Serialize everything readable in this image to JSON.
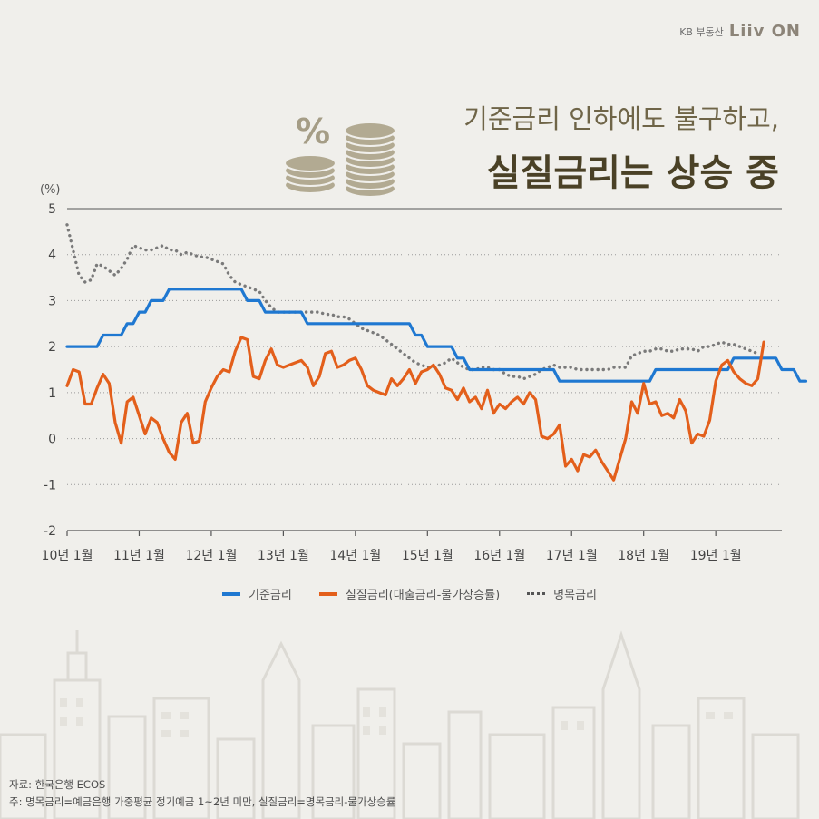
{
  "brand": {
    "kb_text": "KB 부동산",
    "logo_text": "Liiv ON"
  },
  "title": {
    "line1": "기준금리 인하에도 불구하고,",
    "line2": "실질금리는 상승 중"
  },
  "badge": {
    "percent_symbol": "%"
  },
  "colors": {
    "base_rate": "#1f78d1",
    "real_rate": "#e35f1b",
    "nominal_rate": "#7a7a7a",
    "title_dark": "#4a4126",
    "coin": "#b2aa92"
  },
  "chart_data": {
    "type": "line",
    "unit_label": "(%)",
    "ylim": [
      -2,
      5
    ],
    "y_ticks": [
      5,
      4,
      3,
      2,
      1,
      0,
      -1,
      -2
    ],
    "x_tick_labels": [
      "10년 1월",
      "11년 1월",
      "12년 1월",
      "13년 1월",
      "14년 1월",
      "15년 1월",
      "16년 1월",
      "17년 1월",
      "18년 1월",
      "19년 1월"
    ],
    "x_tick_index": [
      0,
      12,
      24,
      36,
      48,
      60,
      72,
      84,
      96,
      108
    ],
    "x_range": [
      0,
      119
    ],
    "grid": "horizontal-dotted",
    "legend_position": "bottom-center",
    "series": [
      {
        "name": "기준금리",
        "style": "solid",
        "values": [
          2.0,
          2.0,
          2.0,
          2.0,
          2.0,
          2.0,
          2.25,
          2.25,
          2.25,
          2.25,
          2.5,
          2.5,
          2.75,
          2.75,
          3.0,
          3.0,
          3.0,
          3.25,
          3.25,
          3.25,
          3.25,
          3.25,
          3.25,
          3.25,
          3.25,
          3.25,
          3.25,
          3.25,
          3.25,
          3.25,
          3.0,
          3.0,
          3.0,
          2.75,
          2.75,
          2.75,
          2.75,
          2.75,
          2.75,
          2.75,
          2.5,
          2.5,
          2.5,
          2.5,
          2.5,
          2.5,
          2.5,
          2.5,
          2.5,
          2.5,
          2.5,
          2.5,
          2.5,
          2.5,
          2.5,
          2.5,
          2.5,
          2.5,
          2.25,
          2.25,
          2.0,
          2.0,
          2.0,
          2.0,
          2.0,
          1.75,
          1.75,
          1.5,
          1.5,
          1.5,
          1.5,
          1.5,
          1.5,
          1.5,
          1.5,
          1.5,
          1.5,
          1.5,
          1.5,
          1.5,
          1.5,
          1.5,
          1.25,
          1.25,
          1.25,
          1.25,
          1.25,
          1.25,
          1.25,
          1.25,
          1.25,
          1.25,
          1.25,
          1.25,
          1.25,
          1.25,
          1.25,
          1.25,
          1.5,
          1.5,
          1.5,
          1.5,
          1.5,
          1.5,
          1.5,
          1.5,
          1.5,
          1.5,
          1.5,
          1.5,
          1.5,
          1.75,
          1.75,
          1.75,
          1.75,
          1.75,
          1.75,
          1.75,
          1.75,
          1.5,
          1.5,
          1.5,
          1.25,
          1.25
        ]
      },
      {
        "name": "실질금리(대출금리-물가상승률)",
        "style": "solid",
        "values": [
          1.15,
          1.5,
          1.45,
          0.75,
          0.75,
          1.1,
          1.4,
          1.2,
          0.35,
          -0.1,
          0.8,
          0.9,
          0.5,
          0.1,
          0.45,
          0.35,
          0.0,
          -0.3,
          -0.45,
          0.35,
          0.55,
          -0.1,
          -0.05,
          0.8,
          1.1,
          1.35,
          1.5,
          1.45,
          1.9,
          2.2,
          2.15,
          1.35,
          1.3,
          1.7,
          1.95,
          1.6,
          1.55,
          1.6,
          1.65,
          1.7,
          1.55,
          1.15,
          1.35,
          1.85,
          1.9,
          1.55,
          1.6,
          1.7,
          1.75,
          1.5,
          1.15,
          1.05,
          1.0,
          0.95,
          1.3,
          1.15,
          1.3,
          1.5,
          1.2,
          1.45,
          1.5,
          1.6,
          1.4,
          1.1,
          1.05,
          0.85,
          1.1,
          0.8,
          0.9,
          0.65,
          1.05,
          0.55,
          0.75,
          0.65,
          0.8,
          0.9,
          0.75,
          1.0,
          0.85,
          0.05,
          0.0,
          0.1,
          0.3,
          -0.6,
          -0.45,
          -0.7,
          -0.35,
          -0.4,
          -0.25,
          -0.5,
          -0.7,
          -0.9,
          -0.45,
          0.0,
          0.8,
          0.55,
          1.2,
          0.75,
          0.8,
          0.5,
          0.55,
          0.45,
          0.85,
          0.6,
          -0.1,
          0.1,
          0.05,
          0.4,
          1.25,
          1.6,
          1.7,
          1.45,
          1.3,
          1.2,
          1.15,
          1.3,
          2.1
        ]
      },
      {
        "name": "명목금리",
        "style": "dotted",
        "values": [
          4.65,
          4.1,
          3.55,
          3.4,
          3.45,
          3.8,
          3.75,
          3.65,
          3.55,
          3.7,
          3.9,
          4.2,
          4.15,
          4.1,
          4.1,
          4.15,
          4.2,
          4.1,
          4.1,
          4.0,
          4.05,
          4.0,
          3.95,
          3.95,
          3.9,
          3.85,
          3.8,
          3.55,
          3.4,
          3.35,
          3.3,
          3.25,
          3.2,
          3.0,
          2.85,
          2.75,
          2.75,
          2.75,
          2.75,
          2.75,
          2.75,
          2.75,
          2.75,
          2.7,
          2.7,
          2.65,
          2.65,
          2.6,
          2.5,
          2.4,
          2.35,
          2.3,
          2.25,
          2.15,
          2.05,
          1.95,
          1.85,
          1.75,
          1.65,
          1.6,
          1.55,
          1.55,
          1.6,
          1.65,
          1.75,
          1.65,
          1.55,
          1.5,
          1.5,
          1.55,
          1.55,
          1.5,
          1.5,
          1.4,
          1.35,
          1.35,
          1.3,
          1.35,
          1.4,
          1.5,
          1.55,
          1.6,
          1.55,
          1.55,
          1.55,
          1.5,
          1.5,
          1.5,
          1.5,
          1.5,
          1.5,
          1.55,
          1.55,
          1.55,
          1.8,
          1.85,
          1.9,
          1.9,
          1.95,
          1.95,
          1.9,
          1.9,
          1.95,
          1.95,
          1.95,
          1.9,
          2.0,
          2.0,
          2.05,
          2.1,
          2.05,
          2.05,
          2.0,
          1.95,
          1.9,
          1.85
        ]
      }
    ]
  },
  "footnote": {
    "source": "자료: 한국은행 ECOS",
    "note": "주: 명목금리=예금은행 가중평균 정기예금 1~2년 미만, 실질금리=명목금리-물가상승률"
  }
}
